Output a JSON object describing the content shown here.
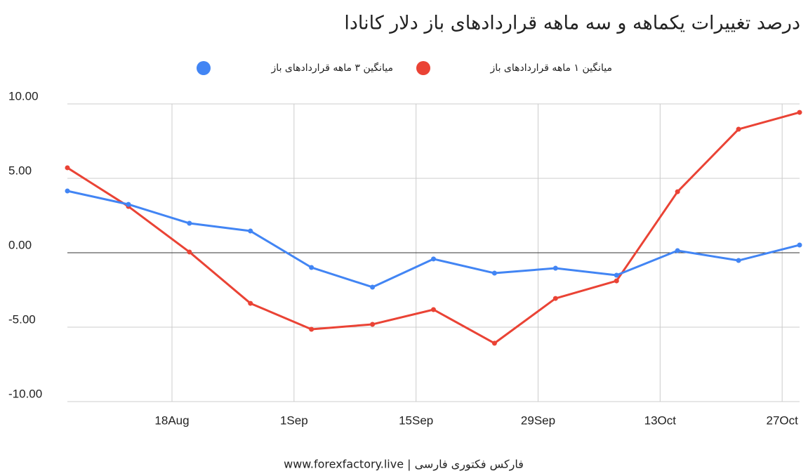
{
  "chart_data": {
    "type": "line",
    "title": "درصد تغییرات یکماهه و سه ماهه قراردادهای باز دلار کانادا",
    "footer": "www.forexfactory.live | فارکس فکتوری فارسی",
    "x": [
      "6Aug",
      "13Aug",
      "20Aug",
      "27Aug",
      "3Sep",
      "10Sep",
      "17Sep",
      "24Sep",
      "1Oct",
      "8Oct",
      "15Oct",
      "22Oct",
      "29Oct"
    ],
    "xlim": [
      "6Aug",
      "29Oct"
    ],
    "xticks": [
      "18Aug",
      "1Sep",
      "15Sep",
      "29Sep",
      "13Oct",
      "27Oct"
    ],
    "ylim": [
      -10,
      10
    ],
    "yticks": [
      {
        "value": -10,
        "label": "-10.00"
      },
      {
        "value": -5,
        "label": "-5.00"
      },
      {
        "value": 0,
        "label": "0.00"
      },
      {
        "value": 5,
        "label": "5.00"
      },
      {
        "value": 10,
        "label": "10.00"
      }
    ],
    "grid": true,
    "series": [
      {
        "name": "میانگین ۱ ماهه قراردادهای باز",
        "color": "#ea4335",
        "values": [
          5.71,
          3.11,
          0.05,
          -3.4,
          -5.14,
          -4.81,
          -3.82,
          -6.08,
          -3.07,
          -1.89,
          4.1,
          8.3,
          9.43
        ]
      },
      {
        "name": "میانگین ۳ ماهه قراردادهای باز",
        "color": "#4285f4",
        "values": [
          4.15,
          3.25,
          1.98,
          1.46,
          -0.99,
          -2.31,
          -0.42,
          -1.37,
          -1.04,
          -1.51,
          0.14,
          -0.52,
          0.52
        ]
      }
    ]
  }
}
